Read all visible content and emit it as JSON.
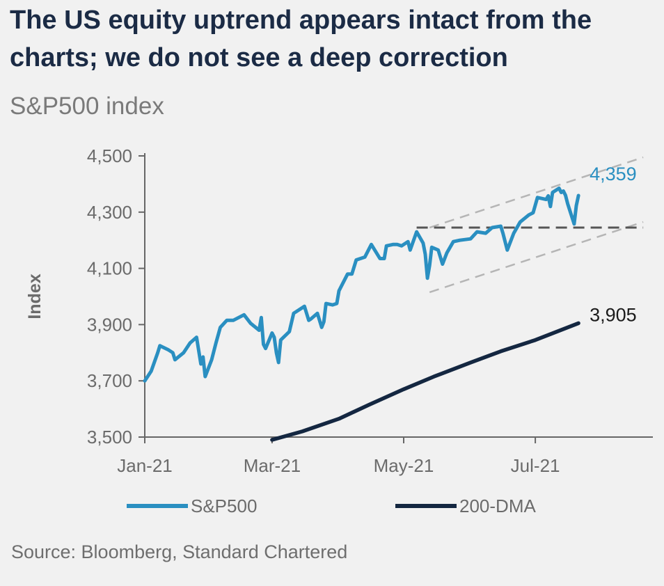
{
  "title": "The US equity uptrend appears intact from the charts; we do not see a deep correction",
  "subtitle": "S&P500 index",
  "source": "Source: Bloomberg, Standard Chartered",
  "colors": {
    "sp500": "#2a8fc1",
    "dma": "#142741",
    "channel": "#b5b5b5",
    "support": "#555555",
    "axis": "#666666",
    "text": "#6b6b6b"
  },
  "chart_data": {
    "type": "line",
    "title": "S&P500 index",
    "ylabel": "Index",
    "xlabel": "",
    "ylim": [
      3500,
      4500
    ],
    "yticks": [
      3500,
      3700,
      3900,
      4100,
      4300,
      4500
    ],
    "ytick_labels": [
      "3,500",
      "3,700",
      "3,900",
      "4,100",
      "4,300",
      "4,500"
    ],
    "xlim": [
      "2021-01-01",
      "2021-08-31"
    ],
    "xticks": [
      "2021-01-01",
      "2021-03-01",
      "2021-05-01",
      "2021-07-01"
    ],
    "xtick_labels": [
      "Jan-21",
      "Mar-21",
      "May-21",
      "Jul-21"
    ],
    "grid": false,
    "legend_position": "bottom",
    "series": [
      {
        "name": "S&P500",
        "color": "#2a8fc1",
        "end_label": "4,359",
        "points": [
          [
            "2021-01-01",
            3700
          ],
          [
            "2021-01-04",
            3735
          ],
          [
            "2021-01-07",
            3800
          ],
          [
            "2021-01-08",
            3825
          ],
          [
            "2021-01-12",
            3810
          ],
          [
            "2021-01-14",
            3800
          ],
          [
            "2021-01-15",
            3775
          ],
          [
            "2021-01-19",
            3800
          ],
          [
            "2021-01-22",
            3835
          ],
          [
            "2021-01-25",
            3855
          ],
          [
            "2021-01-27",
            3760
          ],
          [
            "2021-01-28",
            3785
          ],
          [
            "2021-01-29",
            3715
          ],
          [
            "2021-02-01",
            3775
          ],
          [
            "2021-02-03",
            3835
          ],
          [
            "2021-02-05",
            3890
          ],
          [
            "2021-02-08",
            3915
          ],
          [
            "2021-02-11",
            3915
          ],
          [
            "2021-02-16",
            3935
          ],
          [
            "2021-02-19",
            3905
          ],
          [
            "2021-02-23",
            3880
          ],
          [
            "2021-02-24",
            3925
          ],
          [
            "2021-02-25",
            3830
          ],
          [
            "2021-02-26",
            3815
          ],
          [
            "2021-03-01",
            3870
          ],
          [
            "2021-03-02",
            3855
          ],
          [
            "2021-03-03",
            3800
          ],
          [
            "2021-03-04",
            3765
          ],
          [
            "2021-03-05",
            3845
          ],
          [
            "2021-03-09",
            3875
          ],
          [
            "2021-03-11",
            3940
          ],
          [
            "2021-03-12",
            3945
          ],
          [
            "2021-03-16",
            3965
          ],
          [
            "2021-03-18",
            3915
          ],
          [
            "2021-03-19",
            3920
          ],
          [
            "2021-03-22",
            3940
          ],
          [
            "2021-03-24",
            3890
          ],
          [
            "2021-03-25",
            3910
          ],
          [
            "2021-03-26",
            3975
          ],
          [
            "2021-03-29",
            3970
          ],
          [
            "2021-03-31",
            3975
          ],
          [
            "2021-04-01",
            4020
          ],
          [
            "2021-04-05",
            4080
          ],
          [
            "2021-04-07",
            4080
          ],
          [
            "2021-04-09",
            4130
          ],
          [
            "2021-04-13",
            4140
          ],
          [
            "2021-04-15",
            4170
          ],
          [
            "2021-04-16",
            4185
          ],
          [
            "2021-04-20",
            4135
          ],
          [
            "2021-04-22",
            4135
          ],
          [
            "2021-04-23",
            4180
          ],
          [
            "2021-04-26",
            4185
          ],
          [
            "2021-04-28",
            4185
          ],
          [
            "2021-04-30",
            4180
          ],
          [
            "2021-05-03",
            4195
          ],
          [
            "2021-05-04",
            4165
          ],
          [
            "2021-05-07",
            4230
          ],
          [
            "2021-05-10",
            4190
          ],
          [
            "2021-05-11",
            4150
          ],
          [
            "2021-05-12",
            4065
          ],
          [
            "2021-05-13",
            4110
          ],
          [
            "2021-05-14",
            4175
          ],
          [
            "2021-05-17",
            4165
          ],
          [
            "2021-05-19",
            4115
          ],
          [
            "2021-05-21",
            4155
          ],
          [
            "2021-05-24",
            4195
          ],
          [
            "2021-05-27",
            4200
          ],
          [
            "2021-06-01",
            4205
          ],
          [
            "2021-06-04",
            4230
          ],
          [
            "2021-06-08",
            4225
          ],
          [
            "2021-06-11",
            4245
          ],
          [
            "2021-06-15",
            4250
          ],
          [
            "2021-06-16",
            4225
          ],
          [
            "2021-06-18",
            4165
          ],
          [
            "2021-06-21",
            4225
          ],
          [
            "2021-06-24",
            4265
          ],
          [
            "2021-06-28",
            4290
          ],
          [
            "2021-06-30",
            4298
          ],
          [
            "2021-07-02",
            4352
          ],
          [
            "2021-07-06",
            4345
          ],
          [
            "2021-07-07",
            4358
          ],
          [
            "2021-07-08",
            4320
          ],
          [
            "2021-07-09",
            4370
          ],
          [
            "2021-07-12",
            4385
          ],
          [
            "2021-07-13",
            4370
          ],
          [
            "2021-07-14",
            4375
          ],
          [
            "2021-07-15",
            4360
          ],
          [
            "2021-07-16",
            4330
          ],
          [
            "2021-07-19",
            4258
          ],
          [
            "2021-07-20",
            4323
          ],
          [
            "2021-07-21",
            4359
          ]
        ]
      },
      {
        "name": "200-DMA",
        "color": "#142741",
        "end_label": "3,905",
        "points": [
          [
            "2021-03-01",
            3490
          ],
          [
            "2021-03-15",
            3520
          ],
          [
            "2021-04-01",
            3565
          ],
          [
            "2021-04-15",
            3615
          ],
          [
            "2021-05-01",
            3670
          ],
          [
            "2021-05-15",
            3715
          ],
          [
            "2021-06-01",
            3765
          ],
          [
            "2021-06-15",
            3805
          ],
          [
            "2021-07-01",
            3845
          ],
          [
            "2021-07-21",
            3905
          ]
        ]
      }
    ],
    "annotations": [
      {
        "type": "channel-upper",
        "style": "dashed",
        "color": "#b5b5b5",
        "from": [
          "2021-05-13",
          4245
        ],
        "to": [
          "2021-08-20",
          4495
        ]
      },
      {
        "type": "channel-lower",
        "style": "dashed",
        "color": "#b5b5b5",
        "from": [
          "2021-05-13",
          4015
        ],
        "to": [
          "2021-08-20",
          4265
        ]
      },
      {
        "type": "support",
        "style": "dashed",
        "color": "#555555",
        "from": [
          "2021-05-07",
          4245
        ],
        "to": [
          "2021-08-20",
          4245
        ]
      }
    ],
    "legend": [
      "S&P500",
      "200-DMA"
    ]
  }
}
